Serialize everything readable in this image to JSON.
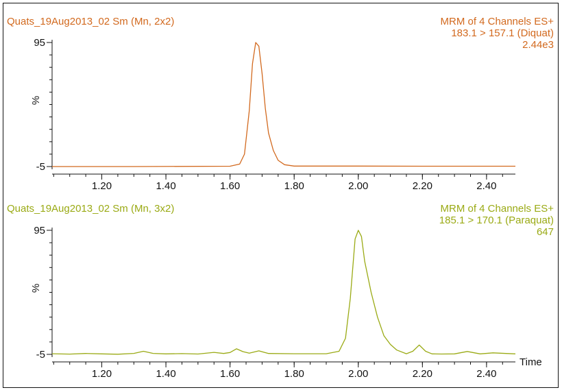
{
  "chart_data": [
    {
      "type": "line",
      "sample_label": "Quats_19Aug2013_02 Sm (Mn, 2x2)",
      "header_lines": [
        "MRM of 4 Channels ES+",
        "183.1 > 157.1 (Diquat)",
        "2.44e3"
      ],
      "color": "#d2691e",
      "ylabel": "%",
      "y_ticks": [
        "95",
        "-5"
      ],
      "x_ticks": [
        "1.20",
        "1.40",
        "1.60",
        "1.80",
        "2.00",
        "2.20",
        "2.40"
      ],
      "xlim": [
        1.045,
        2.49
      ],
      "ylim": [
        -5,
        95
      ],
      "x_axis_title": "",
      "series": [
        {
          "x": [
            1.045,
            1.3,
            1.6,
            1.63,
            1.645,
            1.66,
            1.67,
            1.68,
            1.69,
            1.7,
            1.71,
            1.72,
            1.735,
            1.75,
            1.77,
            1.8,
            2.0,
            2.2,
            2.49
          ],
          "y": [
            -5,
            -5,
            -4.7,
            -3,
            5,
            40,
            78,
            95,
            92,
            70,
            42,
            22,
            8,
            0,
            -3.5,
            -4.6,
            -4.6,
            -4.7,
            -4.7
          ]
        }
      ]
    },
    {
      "type": "line",
      "sample_label": "Quats_19Aug2013_02 Sm (Mn, 3x2)",
      "header_lines": [
        "MRM of 4 Channels ES+",
        "185.1 > 170.1 (Paraquat)",
        "647"
      ],
      "color": "#9aaa14",
      "ylabel": "%",
      "y_ticks": [
        "95",
        "-5"
      ],
      "x_ticks": [
        "1.20",
        "1.40",
        "1.60",
        "1.80",
        "2.00",
        "2.20",
        "2.40"
      ],
      "xlim": [
        1.045,
        2.49
      ],
      "ylim": [
        -5,
        95
      ],
      "x_axis_title": "Time",
      "series": [
        {
          "x": [
            1.045,
            1.1,
            1.15,
            1.2,
            1.25,
            1.3,
            1.33,
            1.36,
            1.4,
            1.45,
            1.5,
            1.55,
            1.58,
            1.6,
            1.62,
            1.64,
            1.66,
            1.69,
            1.72,
            1.8,
            1.9,
            1.94,
            1.96,
            1.975,
            1.99,
            2.0,
            2.01,
            2.02,
            2.04,
            2.06,
            2.08,
            2.1,
            2.12,
            2.15,
            2.17,
            2.19,
            2.21,
            2.23,
            2.26,
            2.3,
            2.34,
            2.38,
            2.42,
            2.49
          ],
          "y": [
            -4.5,
            -4.8,
            -4.3,
            -4.6,
            -4.9,
            -4.2,
            -2.5,
            -4.2,
            -4.6,
            -4.4,
            -4.7,
            -3.4,
            -4.3,
            -3.5,
            -0.5,
            -2.8,
            -4,
            -2.2,
            -4.3,
            -4.5,
            -4.5,
            -2.5,
            8,
            40,
            88,
            95,
            90,
            70,
            45,
            25,
            10,
            3,
            -1.5,
            -4.5,
            -2.5,
            2.5,
            -2.5,
            -4.6,
            -4.7,
            -4.6,
            -2.7,
            -4.6,
            -3.8,
            -4.6
          ]
        }
      ]
    }
  ]
}
